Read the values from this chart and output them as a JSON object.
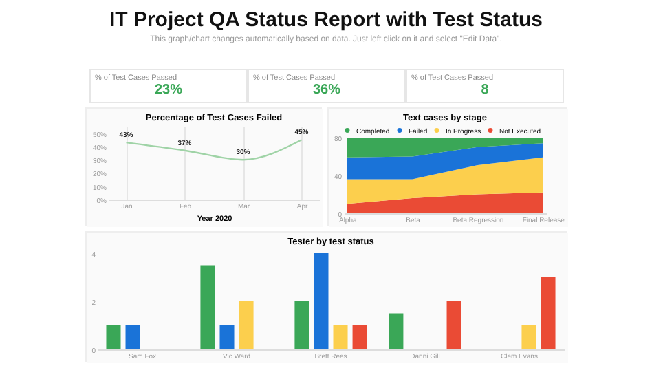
{
  "chart_data": [
    {
      "type": "other",
      "title": "IT Project QA Status Report with Test Status",
      "subtitle": "This graph/chart changes automatically based on data. Just left click on it and select \"Edit Data\"."
    },
    {
      "type": "other",
      "title": "% of Test Cases Passed",
      "annotations": [
        "23%"
      ]
    },
    {
      "type": "other",
      "title": "% of Test Cases Passed",
      "annotations": [
        "36%"
      ]
    },
    {
      "type": "other",
      "title": "% of Test Cases Passed",
      "annotations": [
        "8"
      ]
    },
    {
      "type": "line",
      "title": "Percentage of Test Cases Failed",
      "xlabel": "Year 2020",
      "categories": [
        "Jan",
        "Feb",
        "Mar",
        "Apr"
      ],
      "grid": "x",
      "ylim": [
        0,
        55
      ],
      "yticks": [
        {
          "value": 0,
          "label": "0%"
        },
        {
          "value": 10,
          "label": "10%"
        },
        {
          "value": 20,
          "label": "20%"
        },
        {
          "value": 30,
          "label": "30%"
        },
        {
          "value": 40,
          "label": "40%"
        },
        {
          "value": 50,
          "label": "50%"
        }
      ],
      "series": [
        {
          "color": "#9fd3a6",
          "values": [
            43,
            37,
            30,
            45
          ],
          "value_labels": [
            "43%",
            "37%",
            "30%",
            "45%"
          ]
        }
      ]
    },
    {
      "type": "area",
      "stacked": true,
      "title": "Text cases by stage",
      "categories": [
        "Alpha",
        "Beta",
        "Beta Regression",
        "Final Release"
      ],
      "ylim": [
        0,
        80
      ],
      "yticks": [
        0,
        40,
        80
      ],
      "legend": "top",
      "series": [
        {
          "name": "Not Executed",
          "color": "#ea4b35",
          "values": [
            10,
            16,
            20,
            22
          ]
        },
        {
          "name": "In Progress",
          "color": "#fccf4d",
          "values": [
            26,
            20,
            31,
            37
          ]
        },
        {
          "name": "Failed",
          "color": "#1a73d8",
          "values": [
            23,
            24,
            19,
            15
          ]
        },
        {
          "name": "Completed",
          "color": "#3aa757",
          "values": [
            21,
            20,
            10,
            6
          ]
        }
      ]
    },
    {
      "type": "bar",
      "title": "Tester by test status",
      "categories": [
        "Sam Fox",
        "Vic Ward",
        "Brett Rees",
        "Danni Gill",
        "Clem Evans"
      ],
      "ylim": [
        0,
        4
      ],
      "yticks": [
        0,
        2,
        4
      ],
      "series": [
        {
          "color": "#3aa757",
          "values": [
            1,
            3.5,
            2,
            1.5,
            null
          ]
        },
        {
          "color": "#1a73d8",
          "values": [
            1,
            1,
            4,
            null,
            null
          ]
        },
        {
          "color": "#fccf4d",
          "values": [
            null,
            2,
            1,
            null,
            1
          ]
        },
        {
          "color": "#ea4b35",
          "values": [
            null,
            null,
            1,
            2,
            3
          ]
        }
      ]
    }
  ]
}
